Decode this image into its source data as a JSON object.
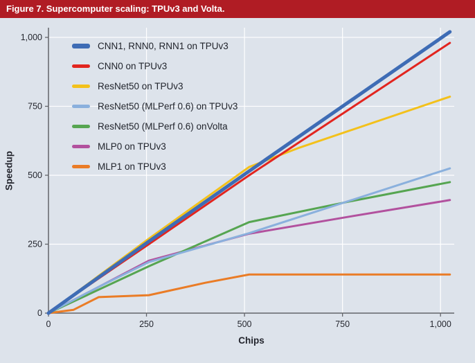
{
  "header": {
    "title": "Figure 7. Supercomputer scaling: TPUv3 and Volta."
  },
  "colors": {
    "header_bg": "#b01c24",
    "panel_bg": "#dde3eb",
    "axis": "#63656a",
    "grid": "#ffffff",
    "text": "#24262e"
  },
  "chart_data": {
    "type": "line",
    "title": "Figure 7. Supercomputer scaling: TPUv3 and Volta.",
    "xlabel": "Chips",
    "ylabel": "Speedup",
    "xlim": [
      0,
      1035
    ],
    "ylim": [
      0,
      1035
    ],
    "grid": true,
    "legend_position": "top-left",
    "x_ticks": [
      0,
      250,
      500,
      750,
      1000
    ],
    "x_tick_labels": [
      "0",
      "250",
      "500",
      "750",
      "1,000"
    ],
    "y_ticks": [
      0,
      250,
      500,
      750,
      1000
    ],
    "y_tick_labels": [
      "0",
      "250",
      "500",
      "750",
      "1,000"
    ],
    "series": [
      {
        "name": "CNN1, RNN0, RNN1 on TPUv3",
        "color": "#3e6cb5",
        "width": 5,
        "x": [
          0,
          128,
          256,
          512,
          1024
        ],
        "y": [
          0,
          130,
          260,
          515,
          1020
        ]
      },
      {
        "name": "CNN0 on TPUv3",
        "color": "#e2251f",
        "width": 3,
        "x": [
          0,
          128,
          256,
          512,
          1024
        ],
        "y": [
          0,
          126,
          250,
          500,
          980
        ]
      },
      {
        "name": "ResNet50 on TPUv3",
        "color": "#f3c11b",
        "width": 3,
        "x": [
          0,
          128,
          256,
          512,
          640,
          1024
        ],
        "y": [
          0,
          135,
          270,
          530,
          600,
          785
        ]
      },
      {
        "name": "ResNet50 (MLPerf 0.6) on TPUv3",
        "color": "#8ab0dd",
        "width": 3,
        "x": [
          0,
          128,
          256,
          512,
          1024
        ],
        "y": [
          0,
          95,
          185,
          290,
          525
        ]
      },
      {
        "name": "ResNet50 (MLPerf 0.6) onVolta",
        "color": "#56a551",
        "width": 3,
        "x": [
          0,
          128,
          256,
          512,
          768,
          1024
        ],
        "y": [
          0,
          85,
          170,
          330,
          405,
          475
        ]
      },
      {
        "name": "MLP0 on TPUv3",
        "color": "#b2519e",
        "width": 3,
        "x": [
          0,
          128,
          256,
          512,
          768,
          1024
        ],
        "y": [
          0,
          95,
          190,
          288,
          350,
          410
        ]
      },
      {
        "name": "MLP1 on TPUv3",
        "color": "#ea7c26",
        "width": 3,
        "x": [
          0,
          64,
          128,
          256,
          400,
          512,
          1024
        ],
        "y": [
          0,
          12,
          58,
          65,
          110,
          140,
          140
        ]
      }
    ]
  }
}
